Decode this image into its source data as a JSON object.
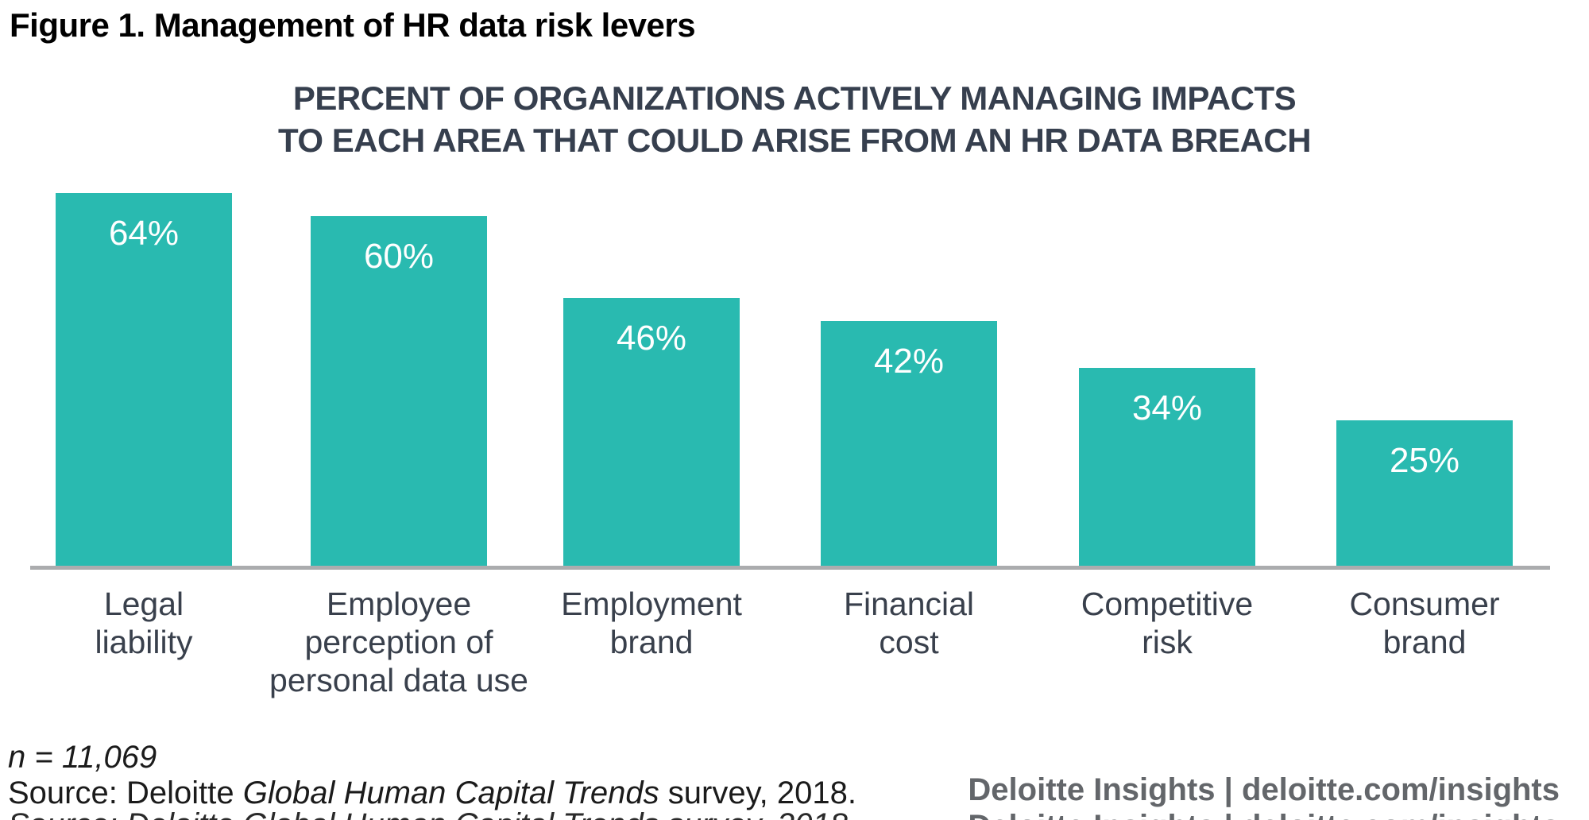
{
  "figure": {
    "title": "Figure 1. Management of HR data risk levers"
  },
  "chart_data": {
    "type": "bar",
    "title_lines": [
      "PERCENT OF ORGANIZATIONS ACTIVELY MANAGING IMPACTS",
      "TO EACH AREA THAT COULD ARISE FROM AN HR DATA BREACH"
    ],
    "categories": [
      "Legal\nliability",
      "Employee\nperception of\npersonal data use",
      "Employment\nbrand",
      "Financial\ncost",
      "Competitive\nrisk",
      "Consumer\nbrand"
    ],
    "values": [
      64,
      60,
      46,
      42,
      34,
      25
    ],
    "value_labels": [
      "64%",
      "60%",
      "46%",
      "42%",
      "34%",
      "25%"
    ],
    "ylim": [
      0,
      100
    ],
    "grid": "off",
    "legend": "none",
    "colors": {
      "bar": "#29BAB0",
      "value_label": "#FFFFFF",
      "axis_line": "#ABACAE",
      "chart_title_text": "#363F4E",
      "category_text": "#39404C"
    }
  },
  "footer": {
    "sample_size": "n = 11,069",
    "source_prefix": "Source: Deloitte ",
    "source_italic": "Global Human Capital Trends",
    "source_suffix": " survey, 2018.",
    "branding": "Deloitte Insights | deloitte.com/insights"
  }
}
